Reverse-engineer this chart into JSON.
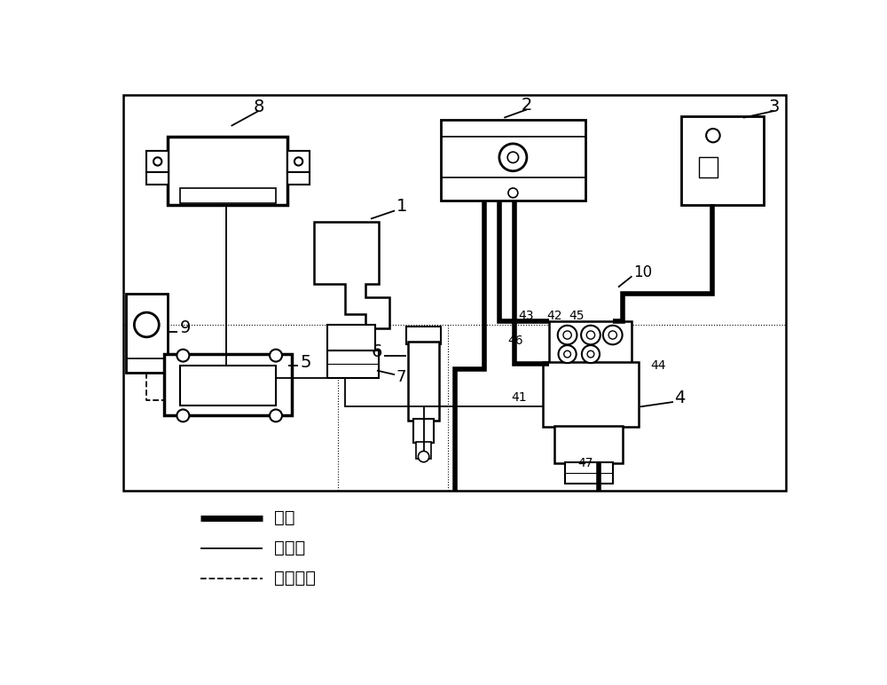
{
  "figsize": [
    10.0,
    7.72
  ],
  "dpi": 100,
  "bg_color": "#ffffff",
  "lc": "#000000",
  "thick": 4.0,
  "thin": 1.3,
  "legend_items": [
    {
      "label": "油管",
      "lw": 5,
      "ls": "-",
      "color": "#000000"
    },
    {
      "label": "电连接",
      "lw": 1.3,
      "ls": "-",
      "color": "#000000"
    },
    {
      "label": "信号连接",
      "lw": 1.3,
      "ls": "--",
      "color": "#000000"
    }
  ]
}
